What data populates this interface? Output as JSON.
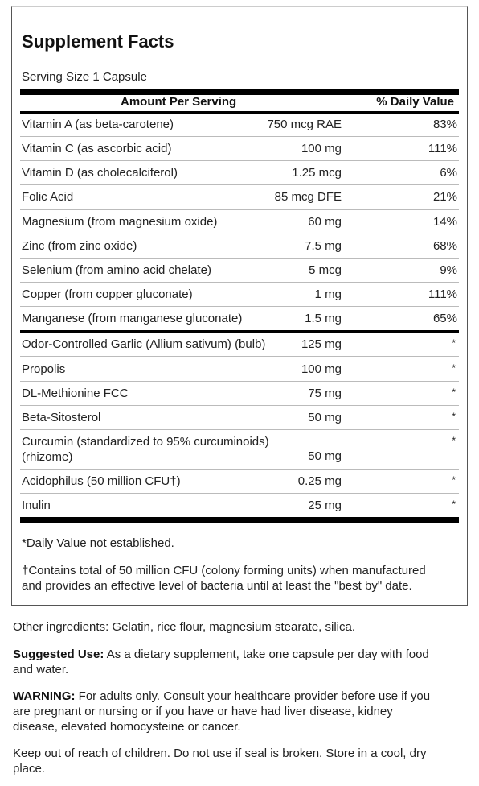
{
  "facts": {
    "title": "Supplement Facts",
    "serving_size": "Serving Size 1 Capsule",
    "header_amount": "Amount Per Serving",
    "header_dv": "% Daily Value",
    "vitamins": [
      {
        "name": "Vitamin A (as beta-carotene)",
        "amount": "750 mcg RAE",
        "dv": "83%"
      },
      {
        "name": "Vitamin C (as ascorbic acid)",
        "amount": "100 mg",
        "dv": "111%"
      },
      {
        "name": "Vitamin D (as cholecalciferol)",
        "amount": "1.25 mcg",
        "dv": "6%"
      },
      {
        "name": "Folic Acid",
        "amount": "85 mcg DFE",
        "dv": "21%"
      },
      {
        "name": "Magnesium (from magnesium oxide)",
        "amount": "60 mg",
        "dv": "14%"
      },
      {
        "name": "Zinc (from zinc oxide)",
        "amount": "7.5 mg",
        "dv": "68%"
      },
      {
        "name": "Selenium (from amino acid chelate)",
        "amount": "5 mcg",
        "dv": "9%"
      },
      {
        "name": "Copper (from copper gluconate)",
        "amount": "1 mg",
        "dv": "111%"
      },
      {
        "name": "Manganese (from manganese gluconate)",
        "amount": "1.5 mg",
        "dv": "65%"
      }
    ],
    "others": [
      {
        "name": "Odor-Controlled Garlic (Allium sativum) (bulb)",
        "amount": "125 mg",
        "dv": "*"
      },
      {
        "name": "Propolis",
        "amount": "100 mg",
        "dv": "*"
      },
      {
        "name": "DL-Methionine FCC",
        "amount": "75 mg",
        "dv": "*"
      },
      {
        "name": "Beta-Sitosterol",
        "amount": "50 mg",
        "dv": "*"
      },
      {
        "name_line1": "Curcumin (standardized to 95% curcuminoids)",
        "name_line2": "(rhizome)",
        "amount": "50 mg",
        "dv": "*"
      },
      {
        "name": "Acidophilus (50 million CFU†)",
        "amount": "0.25 mg",
        "dv": "*"
      },
      {
        "name": "Inulin",
        "amount": "25 mg",
        "dv": "*"
      }
    ],
    "footnote_dv": "*Daily Value not established.",
    "footnote_cfu_line1": "†Contains total of 50 million CFU (colony forming units) when manufactured",
    "footnote_cfu_line2": "and provides an effective level of bacteria until at least the \"best by\" date."
  },
  "other_ingredients": "Other ingredients: Gelatin, rice flour, magnesium stearate, silica.",
  "suggested_use": {
    "label": "Suggested Use:",
    "line1": " As a dietary supplement, take one capsule per day with food",
    "line2": "and water."
  },
  "warning": {
    "label": "WARNING:",
    "line1": " For adults only. Consult your healthcare provider before use if you",
    "line2": "are pregnant or nursing or if you have or have had liver disease, kidney",
    "line3": "disease, elevated homocysteine or cancer."
  },
  "storage": {
    "line1": "Keep out of reach of children. Do not use if seal is broken. Store in a cool, dry",
    "line2": "place."
  }
}
